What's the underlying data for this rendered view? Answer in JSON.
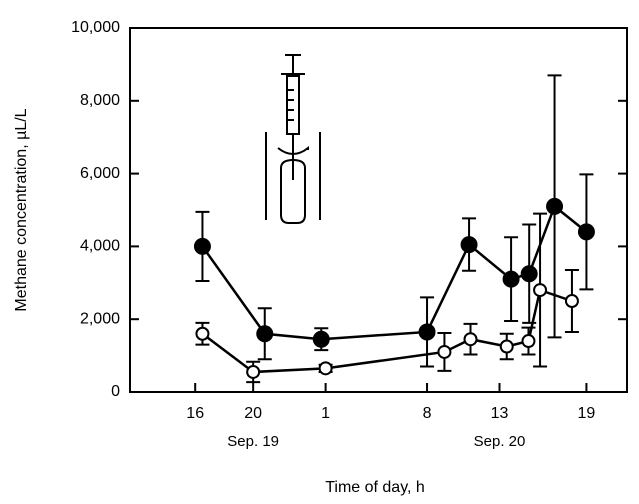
{
  "chart_data": {
    "type": "line",
    "xlabel": "Time of day, h",
    "ylabel": "Methane concentration, µL/L",
    "xlim": [
      11.5,
      45.8
    ],
    "ylim": [
      0,
      10000
    ],
    "xticks": [
      16,
      20,
      {
        "value": 25,
        "label": "1"
      },
      {
        "value": 32,
        "label": "8"
      },
      {
        "value": 37,
        "label": "13"
      },
      {
        "value": 43,
        "label": "19"
      }
    ],
    "yticks": [
      0,
      {
        "value": 2000,
        "label": "2,000"
      },
      {
        "value": 4000,
        "label": "4,000"
      },
      {
        "value": 6000,
        "label": "6,000"
      },
      {
        "value": 8000,
        "label": "8,000"
      },
      {
        "value": 10000,
        "label": "10,000"
      }
    ],
    "annotations": [
      {
        "text": "Sep. 19",
        "x": 20
      },
      {
        "text": "Sep. 20",
        "x": 37
      }
    ],
    "series": [
      {
        "color": "#000000",
        "marker": "filled",
        "x": [
          16.5,
          20.8,
          24.7,
          32,
          34.9,
          37.8,
          39.05,
          40.8,
          43
        ],
        "values": [
          4000,
          1600,
          1450,
          1650,
          4050,
          3100,
          3250,
          5100,
          4400
        ],
        "errors": [
          950,
          700,
          300,
          950,
          720,
          1150,
          1350,
          3600,
          1580
        ]
      },
      {
        "color": "#000000",
        "marker": "open",
        "x": [
          16.5,
          20,
          25,
          33.2,
          35,
          37.5,
          39,
          39.8,
          42
        ],
        "values": [
          1600,
          550,
          650,
          1100,
          1450,
          1250,
          1400,
          2800,
          2500
        ],
        "errors": [
          300,
          280,
          100,
          520,
          420,
          350,
          370,
          2100,
          850
        ]
      }
    ]
  }
}
